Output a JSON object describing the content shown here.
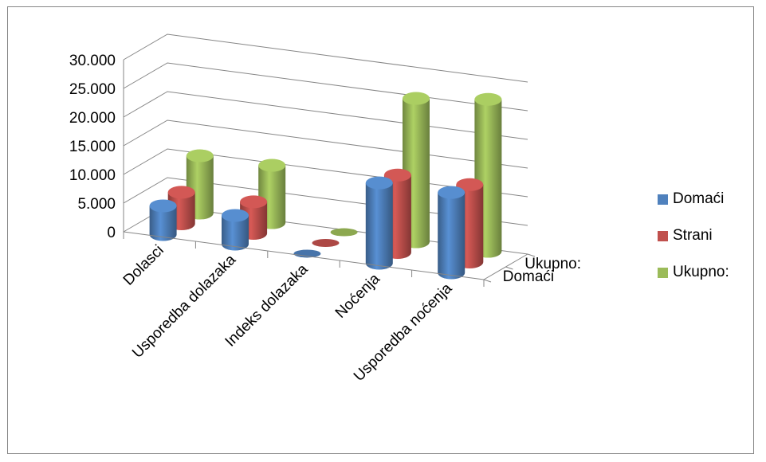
{
  "chart_data": {
    "type": "bar",
    "subtype": "3d-cylinder",
    "categories": [
      "Dolasci",
      "Usporedba dolazaka",
      "Indeks dolazaka",
      "Noćenja",
      "Usporedba noćenja"
    ],
    "depth_categories": [
      "Domaći",
      "Ukupno:"
    ],
    "series": [
      {
        "name": "Domaći",
        "color": "#4F81BD",
        "values": [
          5000,
          5000,
          0,
          14000,
          14000
        ]
      },
      {
        "name": "Strani",
        "color": "#C0504D",
        "values": [
          5500,
          5500,
          0,
          13500,
          13500
        ]
      },
      {
        "name": "Ukupno:",
        "color": "#9BBB59",
        "values": [
          10000,
          10000,
          0,
          25000,
          26500
        ]
      }
    ],
    "y_ticks": [
      "0",
      "5.000",
      "10.000",
      "15.000",
      "20.000",
      "25.000",
      "30.000"
    ],
    "ylim": [
      0,
      30000
    ],
    "legend_position": "right",
    "grid": true
  }
}
